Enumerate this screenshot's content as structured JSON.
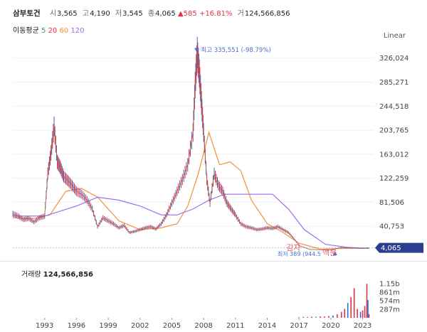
{
  "header": {
    "stock_name": "삼부토건",
    "open_label": "시",
    "open_value": "3,565",
    "high_label": "고",
    "high_value": "4,190",
    "low_label": "저",
    "low_value": "3,545",
    "close_label": "종",
    "close_value": "4,065",
    "change_arrow": "▲",
    "change_value": "585",
    "change_pct": "+16.81%",
    "volume_label": "거",
    "volume_value": "124,566,856"
  },
  "moving_average": {
    "label": "이동평균",
    "periods": [
      "5",
      "20",
      "60",
      "120"
    ],
    "colors": [
      "#3aa55a",
      "#e0314b",
      "#f0913c",
      "#a06cf0"
    ]
  },
  "scale_toggle": "Linear",
  "annotations": {
    "high_marker": "▼ 최고 335,551 (-98.79%)",
    "low_marker": "최저 389 (944.5",
    "event_1": "감자",
    "event_2": "액분",
    "current_price_tag": "4,065"
  },
  "volume_panel": {
    "title_label": "거래량",
    "title_value": "124,566,856",
    "y_ticks": [
      "1.15b",
      "861m",
      "574m",
      "287m"
    ]
  },
  "chart_data": [
    {
      "type": "line",
      "title": "삼부토건",
      "scale": "linear",
      "xlabel": "",
      "ylabel": "",
      "x_ticks": [
        "1993",
        "1996",
        "1999",
        "2002",
        "2005",
        "2008",
        "2011",
        "2014",
        "2017",
        "2020",
        "2023"
      ],
      "y_ticks": [
        326024,
        285271,
        244518,
        203765,
        163012,
        122259,
        81506,
        40753
      ],
      "ylim": [
        0,
        345000
      ],
      "price": {
        "x": [
          1990.0,
          1990.5,
          1991.0,
          1991.5,
          1992.0,
          1992.5,
          1993.0,
          1993.3,
          1993.6,
          1993.9,
          1994.2,
          1994.5,
          1994.8,
          1995.2,
          1995.6,
          1996.0,
          1996.5,
          1997.0,
          1997.5,
          1998.0,
          1998.5,
          1999.0,
          1999.5,
          2000.0,
          2000.5,
          2001.0,
          2001.5,
          2002.0,
          2002.5,
          2003.0,
          2003.5,
          2004.0,
          2004.5,
          2005.0,
          2005.5,
          2006.0,
          2006.5,
          2007.0,
          2007.2,
          2007.4,
          2007.6,
          2007.8,
          2008.0,
          2008.3,
          2008.6,
          2009.0,
          2009.4,
          2009.8,
          2010.2,
          2010.6,
          2011.0,
          2011.5,
          2012.0,
          2012.5,
          2013.0,
          2013.5,
          2014.0,
          2014.5,
          2015.0,
          2015.5,
          2016.0,
          2016.5,
          2017.0,
          2018.0,
          2019.0,
          2020.0,
          2021.0,
          2022.0,
          2023.0,
          2023.6
        ],
        "y": [
          62000,
          58000,
          52000,
          54000,
          48000,
          55000,
          58000,
          130000,
          165000,
          210000,
          150000,
          140000,
          125000,
          118000,
          110000,
          100000,
          95000,
          85000,
          70000,
          40000,
          55000,
          50000,
          45000,
          38000,
          42000,
          30000,
          32000,
          35000,
          38000,
          40000,
          36000,
          45000,
          60000,
          80000,
          100000,
          120000,
          145000,
          200000,
          280000,
          335551,
          300000,
          250000,
          200000,
          120000,
          80000,
          130000,
          110000,
          100000,
          80000,
          70000,
          60000,
          45000,
          40000,
          38000,
          35000,
          36000,
          38000,
          37000,
          40000,
          35000,
          30000,
          20000,
          8000,
          1500,
          900,
          389,
          5000,
          3500,
          3000,
          4065
        ]
      },
      "series": [
        {
          "name": "5",
          "color": "#3aa55a"
        },
        {
          "name": "20",
          "color": "#e0314b"
        },
        {
          "name": "60",
          "color": "#f0913c",
          "x": [
            1990.0,
            1992.0,
            1993.5,
            1995.0,
            1996.5,
            1998.0,
            2000.0,
            2002.0,
            2004.0,
            2005.5,
            2006.5,
            2007.5,
            2008.5,
            2009.5,
            2010.5,
            2011.5,
            2012.5,
            2014.0,
            2015.5,
            2017.0,
            2019.0,
            2021.0,
            2023.6
          ],
          "y": [
            55000,
            54000,
            60000,
            100000,
            105000,
            90000,
            50000,
            35000,
            38000,
            45000,
            75000,
            130000,
            200000,
            145000,
            150000,
            135000,
            85000,
            45000,
            30000,
            12000,
            2000,
            3000,
            4000
          ]
        },
        {
          "name": "120",
          "color": "#a06cf0",
          "x": [
            1990.0,
            1993.0,
            1996.0,
            1998.0,
            2000.0,
            2002.0,
            2004.0,
            2005.5,
            2007.0,
            2008.5,
            2010.0,
            2011.5,
            2013.0,
            2014.5,
            2016.0,
            2017.5,
            2019.5,
            2021.5,
            2023.6
          ],
          "y": [
            58000,
            58000,
            75000,
            90000,
            85000,
            75000,
            60000,
            60000,
            70000,
            85000,
            95000,
            95000,
            95000,
            95000,
            70000,
            35000,
            10000,
            5000,
            3000
          ]
        }
      ]
    },
    {
      "type": "bar",
      "title": "거래량",
      "y_ticks": [
        1150000000,
        861000000,
        574000000,
        287000000
      ],
      "ylim": [
        0,
        1250000000
      ],
      "x": [
        2017.0,
        2017.4,
        2017.8,
        2018.2,
        2018.6,
        2019.0,
        2019.4,
        2019.8,
        2020.2,
        2020.6,
        2021.0,
        2021.3,
        2021.6,
        2021.9,
        2022.2,
        2022.5,
        2022.8,
        2023.0,
        2023.2,
        2023.4,
        2023.5,
        2023.6
      ],
      "values": [
        20000000,
        30000000,
        25000000,
        40000000,
        35000000,
        50000000,
        45000000,
        60000000,
        80000000,
        120000000,
        200000000,
        300000000,
        500000000,
        700000000,
        1000000000,
        300000000,
        200000000,
        250000000,
        400000000,
        1150000000,
        600000000,
        124566856
      ]
    }
  ]
}
